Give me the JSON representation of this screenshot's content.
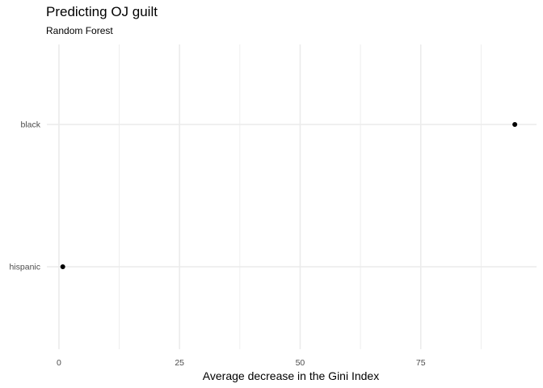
{
  "chart_data": {
    "type": "scatter",
    "title": "Predicting OJ guilt",
    "subtitle": "Random Forest",
    "xlabel": "Average decrease in the Gini Index",
    "ylabel": "",
    "categories": [
      "black",
      "hispanic"
    ],
    "values": [
      94.5,
      0.8
    ],
    "xlim": [
      -2.5,
      99
    ],
    "x_ticks": [
      0,
      25,
      50,
      75
    ],
    "grid": true,
    "point_color": "#000000",
    "grid_color": "#ebebeb"
  }
}
